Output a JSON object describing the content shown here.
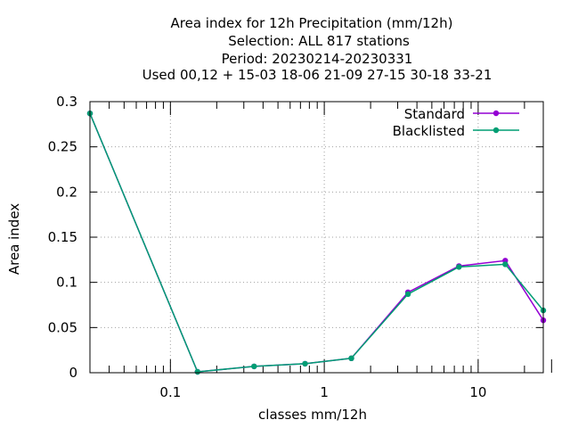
{
  "chart_data": {
    "type": "line",
    "title_lines": [
      "Area index  for 12h Precipitation (mm/12h)",
      "Selection: ALL     817 stations",
      "Period: 20230214-20230331",
      "Used  00,12  + 15-03 18-06 21-09 27-15 30-18 33-21"
    ],
    "xlabel": "classes mm/12h",
    "ylabel": "Area index",
    "xscale": "log",
    "xlim": [
      0.03,
      26.5
    ],
    "ylim": [
      0,
      0.3
    ],
    "grid": true,
    "legend_position": "top-right",
    "x_ticks": [
      {
        "value": 0.1,
        "label": "0.1"
      },
      {
        "value": 1,
        "label": "1"
      },
      {
        "value": 10,
        "label": "10"
      }
    ],
    "y_ticks": [
      {
        "value": 0,
        "label": "0"
      },
      {
        "value": 0.05,
        "label": "0.05"
      },
      {
        "value": 0.1,
        "label": "0.1"
      },
      {
        "value": 0.15,
        "label": "0.15"
      },
      {
        "value": 0.2,
        "label": "0.2"
      },
      {
        "value": 0.25,
        "label": "0.25"
      },
      {
        "value": 0.3,
        "label": "0.3"
      }
    ],
    "x": [
      0.03,
      0.15,
      0.35,
      0.75,
      1.5,
      3.5,
      7.5,
      15,
      26.5
    ],
    "series": [
      {
        "name": "Standard",
        "color": "#9400d3",
        "values": [
          0.287,
          0.001,
          0.007,
          0.01,
          0.016,
          0.089,
          0.118,
          0.124,
          0.058
        ]
      },
      {
        "name": "Blacklisted",
        "color": "#009e73",
        "values": [
          0.287,
          0.001,
          0.007,
          0.01,
          0.016,
          0.087,
          0.117,
          0.12,
          0.069
        ]
      }
    ]
  }
}
